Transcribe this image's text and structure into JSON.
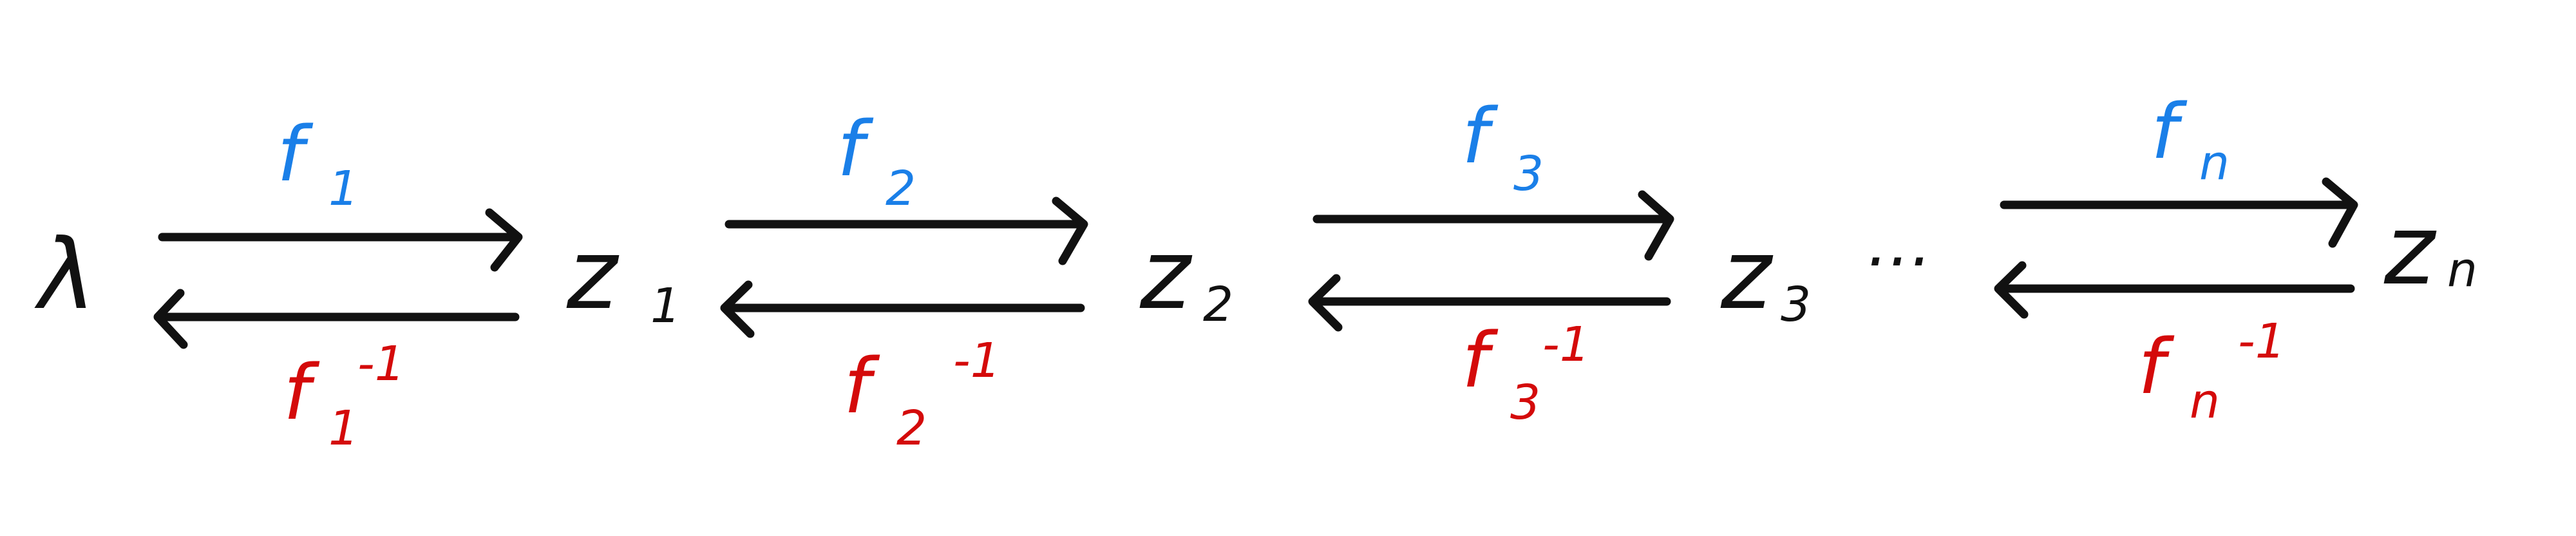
{
  "colors": {
    "ink": "#111111",
    "forward": "#1a7fe8",
    "inverse": "#d40a0a",
    "background": "#ffffff"
  },
  "nodes": [
    {
      "id": "lambda",
      "label": "λ",
      "sub": ""
    },
    {
      "id": "z1",
      "label": "z",
      "sub": "1"
    },
    {
      "id": "z2",
      "label": "z",
      "sub": "2"
    },
    {
      "id": "z3",
      "label": "z",
      "sub": "3"
    },
    {
      "id": "zn",
      "label": "z",
      "sub": "n"
    }
  ],
  "ellipsis": "...",
  "maps": [
    {
      "base": "f",
      "sub": "1",
      "inv_sup": "-1"
    },
    {
      "base": "f",
      "sub": "2",
      "inv_sup": "-1"
    },
    {
      "base": "f",
      "sub": "3",
      "inv_sup": "-1"
    },
    {
      "base": "f",
      "sub": "n",
      "inv_sup": "-1"
    }
  ]
}
